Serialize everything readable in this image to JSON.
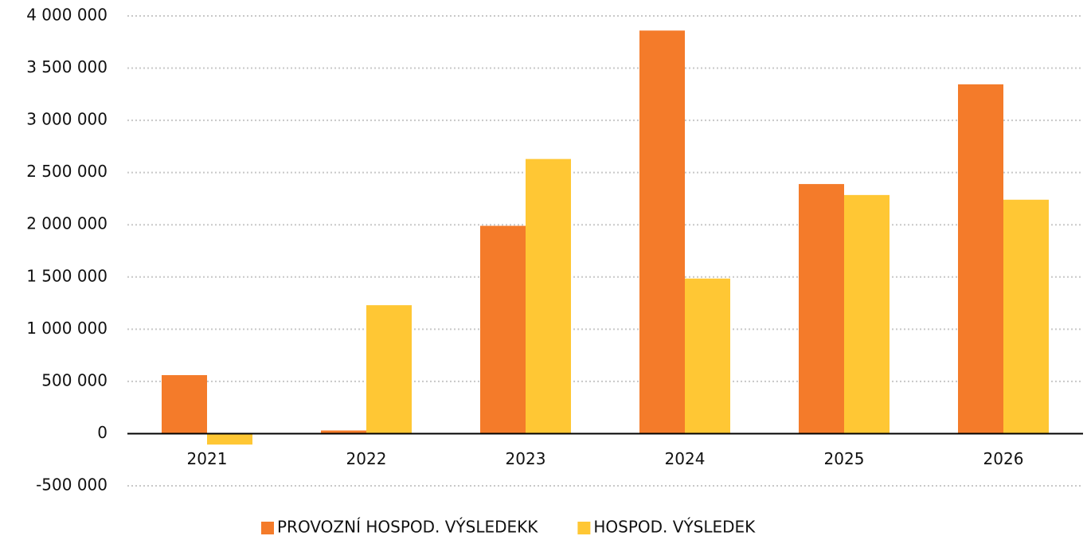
{
  "chart_data": {
    "type": "bar",
    "categories": [
      "2021",
      "2022",
      "2023",
      "2024",
      "2025",
      "2026"
    ],
    "series": [
      {
        "name": "PROVOZNÍ HOSPOD. VÝSLEDEKK",
        "color": "#f47b2a",
        "values": [
          560000,
          30000,
          1990000,
          3860000,
          2390000,
          3345000
        ]
      },
      {
        "name": "HOSPOD. VÝSLEDEK",
        "color": "#ffc734",
        "values": [
          -105000,
          1230000,
          2630000,
          1485000,
          2285000,
          2240000
        ]
      }
    ],
    "ylim": [
      -500000,
      4000000
    ],
    "yticks": [
      {
        "value": -500000,
        "label": "-500 000"
      },
      0,
      {
        "value": 500000,
        "label": "500 000"
      },
      {
        "value": 1000000,
        "label": "1 000 000"
      },
      {
        "value": 1500000,
        "label": "1 500 000"
      },
      {
        "value": 2000000,
        "label": "2 000 000"
      },
      {
        "value": 2500000,
        "label": "2 500 000"
      },
      {
        "value": 3000000,
        "label": "3 000 000"
      },
      {
        "value": 3500000,
        "label": "3 500 000"
      },
      {
        "value": 4000000,
        "label": "4 000 000"
      }
    ],
    "grid": true,
    "legend": "bottom"
  }
}
